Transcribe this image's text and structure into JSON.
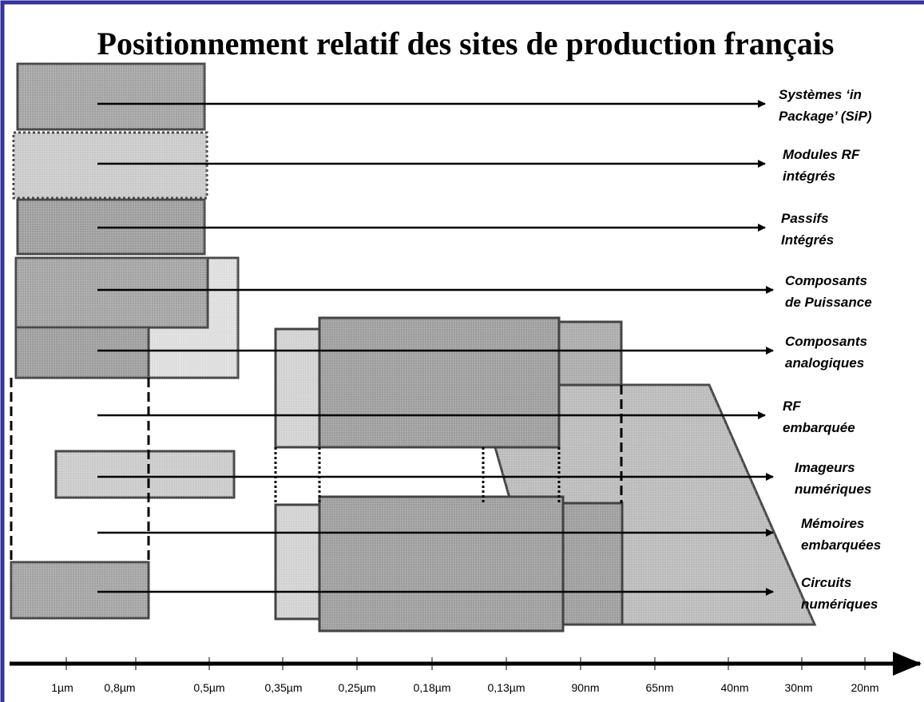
{
  "title": "Positionnement relatif des sites de production français",
  "rows": [
    {
      "lines": [
        "Systèmes ‘in",
        "Package’ (SiP)"
      ]
    },
    {
      "lines": [
        "Modules RF",
        "intégrés"
      ]
    },
    {
      "lines": [
        "Passifs",
        "Intégrés"
      ]
    },
    {
      "lines": [
        "Composants",
        "de Puissance"
      ]
    },
    {
      "lines": [
        "Composants",
        "analogiques"
      ]
    },
    {
      "lines": [
        "RF",
        "embarquée"
      ]
    },
    {
      "lines": [
        "Imageurs",
        "numériques"
      ]
    },
    {
      "lines": [
        "Mémoires",
        "embarquées"
      ]
    },
    {
      "lines": [
        "Circuits",
        "numériques"
      ]
    }
  ],
  "axis": {
    "ticks": [
      "1µm",
      "0,8µm",
      "0,5µm",
      "0,35µm",
      "0,25µm",
      "0,18µm",
      "0,13µm",
      "90nm",
      "65nm",
      "40nm",
      "30nm",
      "20nm"
    ]
  }
}
